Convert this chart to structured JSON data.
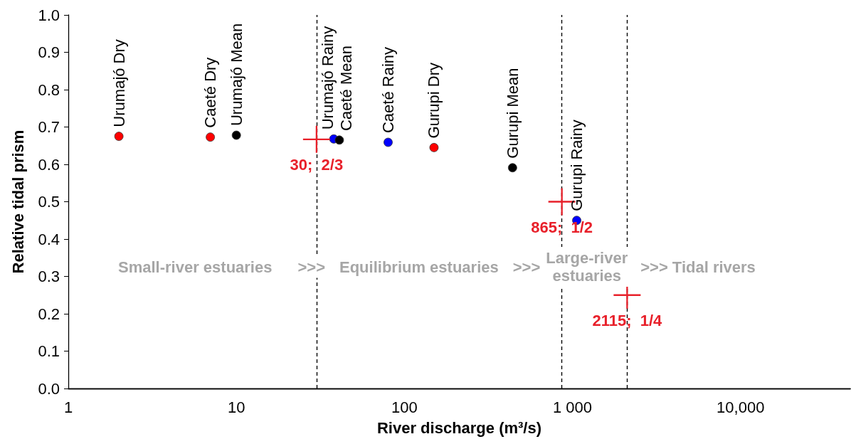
{
  "chart_data": {
    "type": "scatter",
    "xlabel": "River discharge (m³/s)",
    "ylabel": "Relative tidal prism",
    "log": "x",
    "grid": false,
    "xlim": [
      1,
      45000
    ],
    "xticks": [
      1,
      10,
      100,
      {
        "value": 1000,
        "label": "1 000"
      },
      {
        "value": 10000,
        "label": "10,000"
      }
    ],
    "ylim": [
      0,
      1
    ],
    "yticks": [
      {
        "value": 0,
        "label": "0.0"
      },
      0.1,
      0.2,
      0.3,
      0.4,
      0.5,
      0.6,
      0.7,
      0.8,
      0.9,
      {
        "value": 1,
        "label": "1.0"
      }
    ],
    "series": [
      {
        "color": "#ff0000",
        "marker": "circle",
        "x": [
          2,
          7,
          150
        ],
        "values": [
          0.675,
          0.673,
          0.645
        ]
      },
      {
        "color": "#0000ff",
        "marker": "circle",
        "x": [
          38,
          80,
          1060
        ],
        "values": [
          0.668,
          0.659,
          0.45
        ]
      },
      {
        "color": "#000000",
        "marker": "circle",
        "x": [
          10,
          41,
          440
        ],
        "values": [
          0.678,
          0.665,
          0.591
        ]
      },
      {
        "color": "#e8202a",
        "marker": "cross",
        "x": [
          30,
          865,
          2115
        ],
        "values": [
          0.667,
          0.5,
          0.25
        ],
        "value_labels": [
          "30;  2/3",
          "865;  1/2",
          "2115;  1/4"
        ]
      }
    ],
    "ref_lines": [
      {
        "axis": "x",
        "value": 30,
        "color": "#000000",
        "line_style": "dashed"
      },
      {
        "axis": "x",
        "value": 865,
        "color": "#000000",
        "line_style": "dashed"
      },
      {
        "axis": "x",
        "value": 2115,
        "color": "#000000",
        "line_style": "dashed"
      }
    ],
    "annotations": [
      {
        "text": "Urumajó Dry",
        "x": 2,
        "y": 0.675
      },
      {
        "text": "Caeté Dry",
        "x": 7,
        "y": 0.673
      },
      {
        "text": "Urumajó Mean",
        "x": 10,
        "y": 0.678
      },
      {
        "text": "Urumajó Rainy",
        "x": 38,
        "y": 0.668
      },
      {
        "text": "Caeté Mean",
        "x": 41,
        "y": 0.665
      },
      {
        "text": "Caeté Rainy",
        "x": 80,
        "y": 0.659
      },
      {
        "text": "Gurupi Dry",
        "x": 150,
        "y": 0.645
      },
      {
        "text": "Gurupi Mean",
        "x": 440,
        "y": 0.591
      },
      {
        "text": "Gurupi Rainy",
        "x": 1060,
        "y": 0.45
      },
      "Small-river estuaries",
      ">>>",
      "Equilibrium estuaries",
      ">>>",
      "Large-river\nestuaries",
      ">>> Tidal rivers"
    ]
  }
}
